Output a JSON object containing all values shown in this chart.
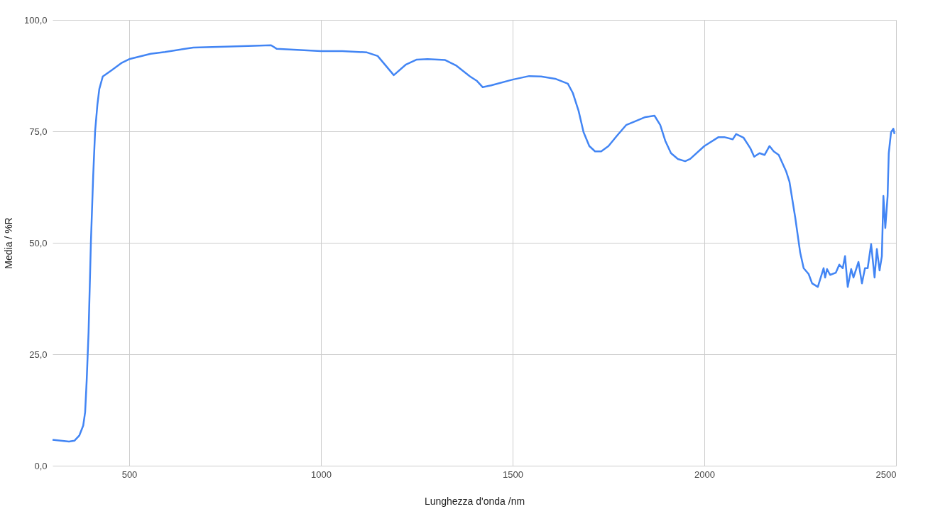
{
  "chart_data": {
    "type": "line",
    "xlabel": "Lunghezza d'onda /nm",
    "ylabel": "Media / %R",
    "x": [
      300,
      343,
      357,
      370,
      380,
      385,
      389,
      394,
      400,
      406,
      411,
      417,
      422,
      431,
      454,
      481,
      500,
      556,
      593,
      667,
      750,
      870,
      885,
      1000,
      1056,
      1120,
      1148,
      1190,
      1222,
      1250,
      1278,
      1324,
      1352,
      1389,
      1407,
      1422,
      1444,
      1500,
      1543,
      1574,
      1611,
      1644,
      1657,
      1672,
      1685,
      1700,
      1715,
      1731,
      1750,
      1772,
      1796,
      1824,
      1846,
      1870,
      1885,
      1898,
      1913,
      1931,
      1950,
      1963,
      2000,
      2037,
      2052,
      2074,
      2083,
      2102,
      2120,
      2130,
      2144,
      2157,
      2170,
      2181,
      2194,
      2213,
      2222,
      2237,
      2250,
      2259,
      2272,
      2281,
      2296,
      2311,
      2315,
      2320,
      2328,
      2343,
      2352,
      2361,
      2367,
      2374,
      2383,
      2389,
      2402,
      2411,
      2419,
      2426,
      2435,
      2444,
      2450,
      2457,
      2463,
      2467,
      2472,
      2478,
      2481,
      2487,
      2493,
      2496
    ],
    "series": [
      {
        "color": "#4285f4",
        "values": [
          5.8,
          5.4,
          5.6,
          6.8,
          9,
          12,
          19,
          30,
          50,
          65,
          75,
          81,
          84.5,
          87.3,
          88.7,
          90.4,
          91.2,
          92.4,
          92.8,
          93.8,
          94,
          94.3,
          93.5,
          93,
          93,
          92.7,
          91.9,
          87.6,
          90,
          91.1,
          91.2,
          91,
          89.8,
          87.3,
          86.3,
          84.9,
          85.3,
          86.6,
          87.4,
          87.3,
          86.8,
          85.7,
          83.6,
          79.6,
          74.8,
          71.7,
          70.5,
          70.5,
          71.7,
          74,
          76.4,
          77.4,
          78.2,
          78.5,
          76.4,
          72.9,
          70.1,
          68.8,
          68.3,
          68.8,
          71.7,
          73.7,
          73.7,
          73.2,
          74.4,
          73.6,
          71.2,
          69.3,
          70.1,
          69.7,
          71.7,
          70.5,
          69.7,
          66.1,
          63.7,
          55.7,
          47.8,
          44.3,
          43,
          40.9,
          40.1,
          44.3,
          42.2,
          44.1,
          42.8,
          43.3,
          45.1,
          44.3,
          47,
          40.1,
          44.1,
          42.2,
          45.7,
          40.9,
          44.3,
          44.3,
          49.7,
          42.2,
          48.6,
          43.8,
          47,
          60.5,
          53.3,
          60.5,
          70.1,
          74.8,
          75.6,
          74.4
        ]
      }
    ],
    "xlim": [
      300,
      2500
    ],
    "xticks": [
      500,
      1000,
      1500,
      2000,
      2500
    ],
    "ylim": [
      0,
      100
    ],
    "yticks": [
      {
        "value": 0,
        "label": "0,0"
      },
      {
        "value": 25,
        "label": "25,0"
      },
      {
        "value": 50,
        "label": "50,0"
      },
      {
        "value": 75,
        "label": "75,0"
      },
      {
        "value": 100,
        "label": "100,0"
      }
    ],
    "grid": true,
    "marker": "none",
    "line_style": "solid"
  }
}
